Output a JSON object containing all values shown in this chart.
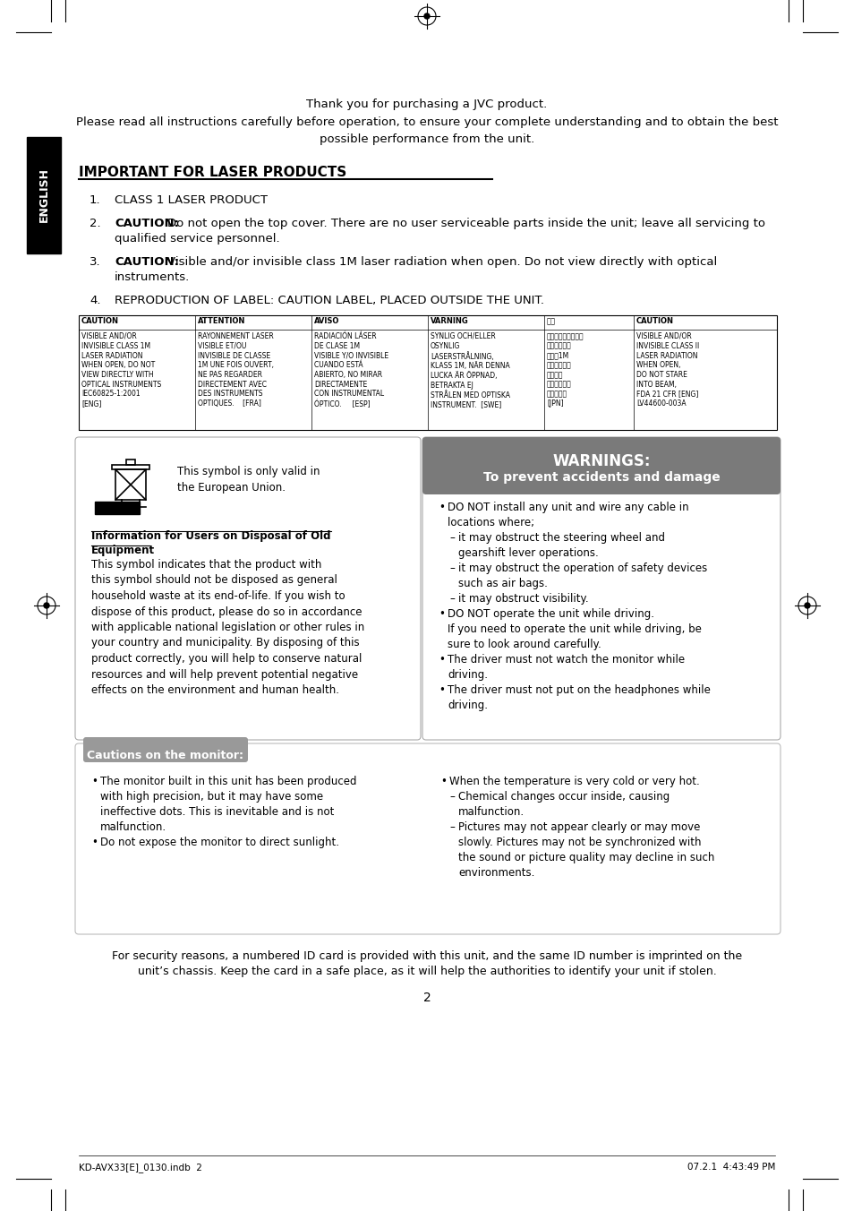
{
  "bg_color": "#ffffff",
  "page_number": "2",
  "header_line1": "Thank you for purchasing a JVC product.",
  "header_line2": "Please read all instructions carefully before operation, to ensure your complete understanding and to obtain the best",
  "header_line3": "possible performance from the unit.",
  "section_title": "IMPORTANT FOR LASER PRODUCTS",
  "bottom_left": "KD-AVX33[E]_0130.indb  2",
  "bottom_right": "07.2.1  4:43:49 PM",
  "table_headers": [
    "CAUTION",
    "ATTENTION",
    "AVISO",
    "VARNING",
    "注意",
    "CAUTION"
  ],
  "table_cells": [
    "VISIBLE AND/OR\nINVISIBLE CLASS 1M\nLASER RADIATION\nWHEN OPEN, DO NOT\nVIEW DIRECTLY WITH\nOPTICAL INSTRUMENTS\nIEC60825-1:2001\n[ENG]",
    "RAYONNEMENT LASER\nVISIBLE ET/OU\nINVISIBLE DE CLASSE\n1M UNE FOIS OUVERT,\nNE PAS REGARDER\nDIRECTEMENT AVEC\nDES INSTRUMENTS\nOPTIQUES.    [FRA]",
    "RADIACIÓN LÁSER\nDE CLASE 1M\nVISIBLE Y/O INVISIBLE\nCUANDO ESTÁ\nABIERTO, NO MIRAR\nDIRECTAMENTE\nCON INSTRUMENTAL\nÓPTICO.     [ESP]",
    "SYNLIG OCH/ELLER\nOSYNLIG\nLASERSTRÅLNING,\nKLASS 1M, NÄR DENNA\nLUCKA ÄR ÖPPNAD,\nBETRAKTA EJ\nSTRÅLEN MED OPTISKA\nINSTRUMENT.  [SWE]",
    "ここを開くと見える\nまたは不射の\nクラス1M\nレーザー光が\n出ます。\n光学機器で直\n視しないで\n[JPN]",
    "VISIBLE AND/OR\nINVISIBLE CLASS II\nLASER RADIATION\nWHEN OPEN,\nDO NOT STARE\nINTO BEAM,\nFDA 21 CFR [ENG]\nLV44600-003A"
  ],
  "english_tab_color": "#000000",
  "warnings_gray": "#7a7a7a",
  "cautions_gray": "#999999"
}
